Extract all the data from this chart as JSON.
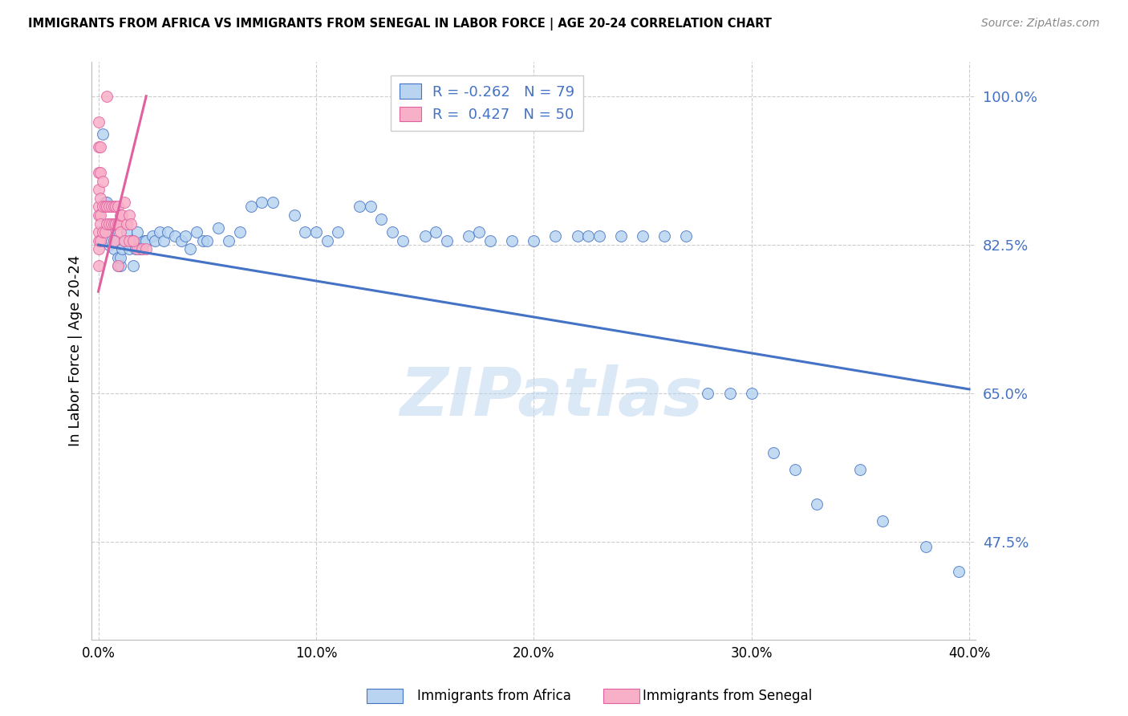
{
  "title": "IMMIGRANTS FROM AFRICA VS IMMIGRANTS FROM SENEGAL IN LABOR FORCE | AGE 20-24 CORRELATION CHART",
  "source": "Source: ZipAtlas.com",
  "ylabel": "In Labor Force | Age 20-24",
  "legend_africa": "Immigrants from Africa",
  "legend_senegal": "Immigrants from Senegal",
  "R_africa": -0.262,
  "N_africa": 79,
  "R_senegal": 0.427,
  "N_senegal": 50,
  "xlim": [
    -0.003,
    0.403
  ],
  "ylim": [
    0.36,
    1.04
  ],
  "ytick_positions": [
    0.475,
    0.65,
    0.825,
    1.0
  ],
  "ytick_labels": [
    "47.5%",
    "65.0%",
    "82.5%",
    "100.0%"
  ],
  "xtick_positions": [
    0.0,
    0.1,
    0.2,
    0.3,
    0.4
  ],
  "xtick_labels": [
    "0.0%",
    "10.0%",
    "20.0%",
    "30.0%",
    "40.0%"
  ],
  "color_africa": "#b8d4f0",
  "color_senegal": "#f8b0c8",
  "color_africa_line": "#4472c4",
  "color_senegal_line": "#e060a0",
  "color_axis_label": "#4472c4",
  "watermark_text": "ZIPatlas",
  "africa_line_x0": 0.0,
  "africa_line_y0": 0.825,
  "africa_line_x1": 0.4,
  "africa_line_y1": 0.655,
  "senegal_line_x0": 0.0,
  "senegal_line_y0": 0.77,
  "senegal_line_x1": 0.022,
  "senegal_line_y1": 1.0,
  "africa_x": [
    0.002,
    0.003,
    0.004,
    0.005,
    0.005,
    0.006,
    0.007,
    0.007,
    0.008,
    0.009,
    0.009,
    0.01,
    0.01,
    0.011,
    0.012,
    0.013,
    0.014,
    0.015,
    0.016,
    0.017,
    0.018,
    0.019,
    0.02,
    0.021,
    0.022,
    0.025,
    0.026,
    0.028,
    0.03,
    0.032,
    0.035,
    0.038,
    0.04,
    0.042,
    0.045,
    0.048,
    0.05,
    0.055,
    0.06,
    0.065,
    0.07,
    0.075,
    0.08,
    0.09,
    0.095,
    0.1,
    0.105,
    0.11,
    0.12,
    0.125,
    0.13,
    0.135,
    0.14,
    0.15,
    0.155,
    0.16,
    0.17,
    0.175,
    0.18,
    0.19,
    0.2,
    0.21,
    0.22,
    0.225,
    0.23,
    0.24,
    0.25,
    0.26,
    0.27,
    0.28,
    0.29,
    0.3,
    0.31,
    0.32,
    0.33,
    0.35,
    0.36,
    0.38,
    0.395
  ],
  "africa_y": [
    0.955,
    0.875,
    0.875,
    0.825,
    0.84,
    0.83,
    0.82,
    0.83,
    0.83,
    0.8,
    0.81,
    0.8,
    0.81,
    0.82,
    0.83,
    0.84,
    0.82,
    0.83,
    0.8,
    0.82,
    0.84,
    0.82,
    0.82,
    0.83,
    0.83,
    0.835,
    0.83,
    0.84,
    0.83,
    0.84,
    0.835,
    0.83,
    0.835,
    0.82,
    0.84,
    0.83,
    0.83,
    0.845,
    0.83,
    0.84,
    0.87,
    0.875,
    0.875,
    0.86,
    0.84,
    0.84,
    0.83,
    0.84,
    0.87,
    0.87,
    0.855,
    0.84,
    0.83,
    0.835,
    0.84,
    0.83,
    0.835,
    0.84,
    0.83,
    0.83,
    0.83,
    0.835,
    0.835,
    0.835,
    0.835,
    0.835,
    0.835,
    0.835,
    0.835,
    0.65,
    0.65,
    0.65,
    0.58,
    0.56,
    0.52,
    0.56,
    0.5,
    0.47,
    0.44
  ],
  "senegal_x": [
    0.0,
    0.0,
    0.0,
    0.0,
    0.0,
    0.0,
    0.0,
    0.0,
    0.0,
    0.0,
    0.001,
    0.001,
    0.001,
    0.001,
    0.001,
    0.001,
    0.002,
    0.002,
    0.002,
    0.003,
    0.003,
    0.004,
    0.004,
    0.005,
    0.005,
    0.006,
    0.006,
    0.007,
    0.007,
    0.008,
    0.008,
    0.009,
    0.009,
    0.01,
    0.01,
    0.011,
    0.012,
    0.013,
    0.014,
    0.015,
    0.016,
    0.018,
    0.02,
    0.022,
    0.004,
    0.007,
    0.009,
    0.012,
    0.014,
    0.016
  ],
  "senegal_y": [
    0.97,
    0.94,
    0.91,
    0.89,
    0.87,
    0.86,
    0.84,
    0.83,
    0.82,
    0.8,
    0.94,
    0.91,
    0.88,
    0.86,
    0.85,
    0.83,
    0.9,
    0.87,
    0.84,
    0.87,
    0.84,
    0.87,
    0.85,
    0.87,
    0.85,
    0.87,
    0.85,
    0.87,
    0.85,
    0.87,
    0.85,
    0.87,
    0.85,
    0.86,
    0.84,
    0.86,
    0.875,
    0.85,
    0.86,
    0.85,
    0.83,
    0.82,
    0.82,
    0.82,
    1.0,
    0.83,
    0.8,
    0.83,
    0.83,
    0.83
  ]
}
